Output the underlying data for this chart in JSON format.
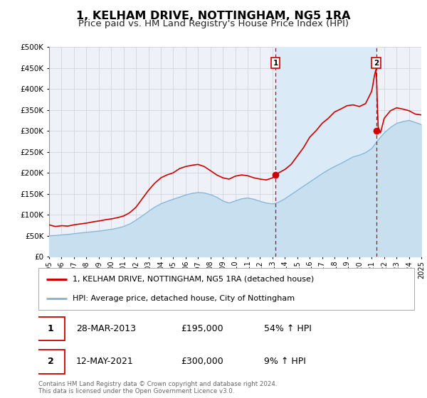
{
  "title": "1, KELHAM DRIVE, NOTTINGHAM, NG5 1RA",
  "subtitle": "Price paid vs. HM Land Registry's House Price Index (HPI)",
  "legend_line1": "1, KELHAM DRIVE, NOTTINGHAM, NG5 1RA (detached house)",
  "legend_line2": "HPI: Average price, detached house, City of Nottingham",
  "footer_line1": "Contains HM Land Registry data © Crown copyright and database right 2024.",
  "footer_line2": "This data is licensed under the Open Government Licence v3.0.",
  "sale1_date": "28-MAR-2013",
  "sale1_price": "£195,000",
  "sale1_hpi": "54% ↑ HPI",
  "sale2_date": "12-MAY-2021",
  "sale2_price": "£300,000",
  "sale2_hpi": "9% ↑ HPI",
  "sale1_year": 2013.24,
  "sale1_value": 195000,
  "sale2_year": 2021.36,
  "sale2_value": 300000,
  "vline1_x": 2013.24,
  "vline2_x": 2021.36,
  "xmin": 1995,
  "xmax": 2025,
  "ymin": 0,
  "ymax": 500000,
  "bg_color": "#eef2f8",
  "red_color": "#cc0000",
  "blue_color": "#88b8d8",
  "blue_fill": "#c8dff0",
  "grid_color": "#d8dde8",
  "title_fontsize": 11.5,
  "subtitle_fontsize": 9.5
}
